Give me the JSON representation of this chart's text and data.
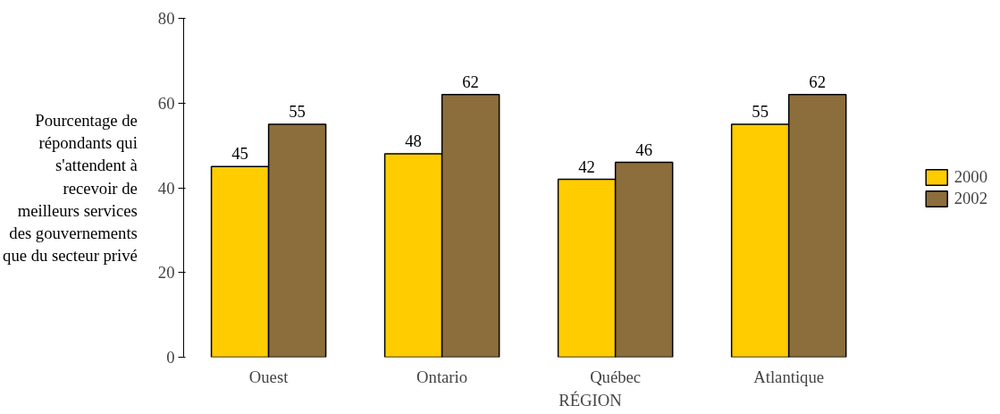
{
  "chart_data": {
    "type": "bar",
    "xlabel": "RÉGION",
    "ylabel": "Pourcentage de répondants qui s'attendent à recevoir de meilleurs services des gouvernements que du secteur privé",
    "categories": [
      "Ouest",
      "Ontario",
      "Québec",
      "Atlantique"
    ],
    "series": [
      {
        "name": "2000",
        "color": "#ffcc00",
        "values": [
          45,
          48,
          42,
          55
        ]
      },
      {
        "name": "2002",
        "color": "#8c6e3c",
        "values": [
          55,
          62,
          46,
          62
        ]
      }
    ],
    "ylim": [
      0,
      80
    ],
    "yticks": [
      0,
      20,
      40,
      60,
      80
    ],
    "data_labels": true,
    "legend": "right",
    "grid": false
  }
}
